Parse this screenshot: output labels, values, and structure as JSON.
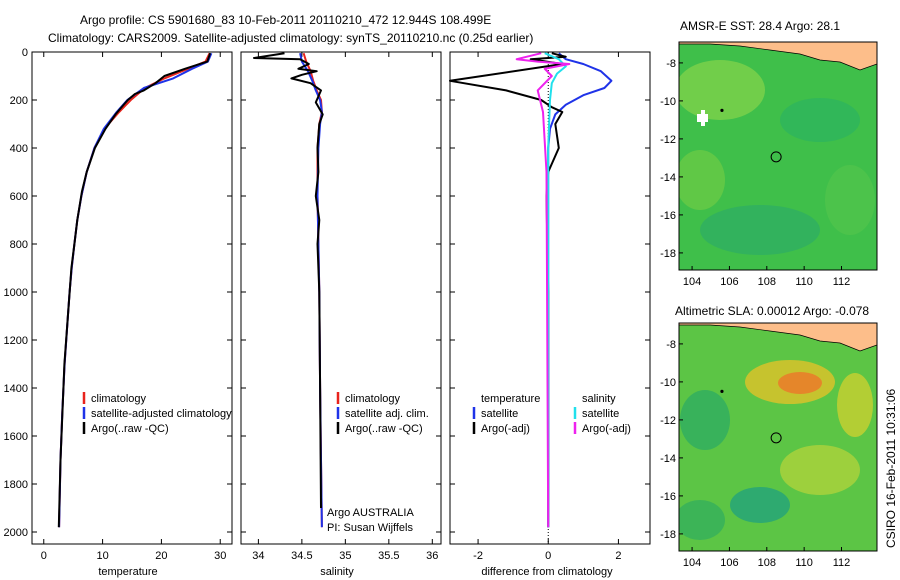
{
  "figure": {
    "title_line1": "Argo profile: CS 5901680_83 10-Feb-2011 20110210_472 12.944S 108.499E",
    "title_line2": "Climatology: CARS2009. Satellite-adjusted climatology: synTS_20110210.nc (0.25d earlier)",
    "side_label": "CSIRO 16-Feb-2011 10:31:06",
    "colors": {
      "climatology": "#e8231c",
      "satellite": "#1f33e8",
      "argo": "#000000",
      "diff_satellite": "#20e0ec",
      "diff_argo": "#ee22ee",
      "land": "#fdbe8a",
      "sea_green": "#3fbf4a",
      "float_marker": "#000000"
    }
  },
  "panels": {
    "temperature": {
      "xlabel": "temperature",
      "legend": [
        "climatology",
        "satellite-adjusted climatology",
        "Argo(..raw -QC)"
      ]
    },
    "salinity": {
      "xlabel": "salinity",
      "legend": [
        "climatology",
        "satellite adj. clim.",
        "Argo(..raw -QC)"
      ],
      "note1": "Argo AUSTRALIA",
      "note2": "PI: Susan Wijffels"
    },
    "difference": {
      "xlabel": "difference from climatology",
      "legend_head_left": "temperature",
      "legend_head_right": "salinity",
      "legend_left": [
        "satellite",
        "Argo(-adj)"
      ],
      "legend_right": [
        "satellite",
        "Argo(-adj)"
      ]
    },
    "sst_map": {
      "title": "AMSR-E SST: 28.4 Argo: 28.1"
    },
    "sla_map": {
      "title": "Altimetric SLA: 0.00012 Argo: -0.078"
    }
  },
  "chart_data": [
    {
      "type": "line",
      "name": "temperature",
      "xlabel": "temperature",
      "ylabel": "",
      "xlim": [
        -2,
        32
      ],
      "ylim": [
        2050,
        0
      ],
      "xticks": [
        0,
        10,
        20,
        30
      ],
      "yticks": [
        0,
        200,
        400,
        600,
        800,
        1000,
        1200,
        1400,
        1600,
        1800,
        2000
      ],
      "grid": false,
      "series": [
        {
          "name": "climatology",
          "color": "#e8231c",
          "x": [
            28.2,
            27.5,
            24.5,
            20.5,
            17.2,
            14.8,
            12.8,
            10.3,
            8.6,
            7.3,
            6.4,
            5.7,
            5.2,
            4.75,
            4.4,
            4.1,
            3.55,
            3.15,
            2.85,
            2.6
          ],
          "y": [
            5,
            40,
            70,
            110,
            150,
            200,
            250,
            320,
            400,
            500,
            600,
            700,
            800,
            900,
            1000,
            1100,
            1300,
            1500,
            1700,
            1980
          ]
        },
        {
          "name": "satellite-adjusted climatology",
          "color": "#1f33e8",
          "x": [
            28.5,
            27.9,
            25.2,
            22.0,
            17.0,
            14.2,
            12.4,
            10.2,
            8.6,
            7.3,
            6.4,
            5.7,
            5.2,
            4.75,
            4.4,
            4.1,
            3.55,
            3.15,
            2.85,
            2.6
          ],
          "y": [
            5,
            40,
            70,
            110,
            150,
            200,
            250,
            320,
            400,
            500,
            600,
            700,
            800,
            900,
            1000,
            1100,
            1300,
            1500,
            1700,
            1980
          ]
        },
        {
          "name": "Argo(..raw -QC)",
          "color": "#000000",
          "x": [
            28.3,
            27.8,
            24.0,
            20.5,
            19.0,
            17.0,
            15.5,
            14.3,
            13.4,
            12.2,
            10.5,
            8.7,
            7.3,
            6.5,
            5.7,
            5.2,
            4.7,
            4.1,
            3.5,
            2.85,
            2.55
          ],
          "y": [
            5,
            40,
            70,
            100,
            130,
            160,
            175,
            200,
            225,
            260,
            320,
            400,
            500,
            580,
            700,
            800,
            900,
            1100,
            1300,
            1700,
            1980
          ]
        }
      ]
    },
    {
      "type": "line",
      "name": "salinity",
      "xlabel": "salinity",
      "ylabel": "",
      "xlim": [
        33.8,
        36.1
      ],
      "ylim": [
        2050,
        0
      ],
      "xticks": [
        34,
        34.5,
        35,
        35.5,
        36
      ],
      "grid": false,
      "series": [
        {
          "name": "climatology",
          "color": "#e8231c",
          "x": [
            34.52,
            34.55,
            34.6,
            34.63,
            34.67,
            34.72,
            34.73,
            34.7,
            34.68,
            34.68,
            34.69,
            34.7,
            34.71,
            34.72,
            34.73
          ],
          "y": [
            5,
            40,
            80,
            120,
            160,
            200,
            250,
            300,
            400,
            600,
            800,
            1000,
            1400,
            1700,
            1980
          ]
        },
        {
          "name": "satellite adj. clim.",
          "color": "#1f33e8",
          "x": [
            34.48,
            34.5,
            34.57,
            34.62,
            34.66,
            34.71,
            34.73,
            34.71,
            34.69,
            34.68,
            34.69,
            34.7,
            34.71,
            34.72,
            34.73
          ],
          "y": [
            5,
            40,
            80,
            120,
            160,
            200,
            250,
            300,
            400,
            600,
            800,
            1000,
            1400,
            1700,
            1980
          ]
        },
        {
          "name": "Argo(..raw -QC)",
          "color": "#000000",
          "x": [
            34.3,
            33.95,
            34.48,
            34.58,
            34.46,
            34.67,
            34.5,
            34.38,
            34.6,
            34.72,
            34.66,
            34.74,
            34.7,
            34.68,
            34.69,
            34.66,
            34.7,
            34.68,
            34.7,
            34.71,
            34.72
          ],
          "y": [
            5,
            25,
            30,
            50,
            70,
            80,
            95,
            110,
            130,
            160,
            210,
            260,
            300,
            400,
            500,
            600,
            700,
            800,
            1000,
            1400,
            1900
          ]
        }
      ]
    },
    {
      "type": "line",
      "name": "difference from climatology",
      "xlabel": "difference from climatology",
      "ylabel": "",
      "xlim": [
        -2.8,
        2.9
      ],
      "ylim": [
        2050,
        0
      ],
      "xticks": [
        -2,
        0,
        2
      ],
      "grid": false,
      "series": [
        {
          "name": "temperature satellite",
          "color": "#1f33e8",
          "x": [
            0.3,
            0.5,
            1.0,
            1.5,
            1.8,
            1.6,
            1.0,
            0.5,
            0.2,
            0.05,
            0.0,
            0.0
          ],
          "y": [
            5,
            30,
            50,
            80,
            120,
            150,
            180,
            220,
            260,
            320,
            400,
            1980
          ]
        },
        {
          "name": "temperature Argo(-adj)",
          "color": "#000000",
          "x": [
            0.1,
            0.5,
            -0.5,
            0.4,
            -2.8,
            -1.2,
            -0.2,
            0.1,
            0.4,
            0.2,
            0.3,
            0.0,
            -0.05,
            0.0,
            0.0
          ],
          "y": [
            5,
            20,
            30,
            50,
            120,
            160,
            200,
            230,
            250,
            300,
            400,
            500,
            600,
            1000,
            1980
          ]
        },
        {
          "name": "salinity satellite",
          "color": "#20e0ec",
          "x": [
            -0.1,
            0.3,
            0.5,
            0.25,
            0.1,
            0.05,
            0.0,
            0.0
          ],
          "y": [
            5,
            30,
            60,
            90,
            130,
            200,
            400,
            1980
          ]
        },
        {
          "name": "salinity Argo(-adj)",
          "color": "#ee22ee",
          "x": [
            -0.2,
            -0.9,
            -0.3,
            0.6,
            -0.1,
            0.1,
            -0.3,
            -0.15,
            -0.05,
            0.0
          ],
          "y": [
            5,
            30,
            40,
            50,
            70,
            100,
            160,
            250,
            500,
            1980
          ]
        }
      ]
    },
    {
      "type": "heatmap",
      "name": "AMSR-E SST",
      "title": "AMSR-E SST: 28.4 Argo: 28.1",
      "xlim": [
        103.3,
        113.9
      ],
      "ylim": [
        -18.9,
        -6.9
      ],
      "xticks": [
        104,
        106,
        108,
        110,
        112
      ],
      "yticks": [
        -8,
        -10,
        -12,
        -14,
        -16,
        -18
      ],
      "float_position": [
        108.5,
        -12.944
      ],
      "marker_position": [
        105.6,
        -10.5
      ]
    },
    {
      "type": "heatmap",
      "name": "Altimetric SLA",
      "title": "Altimetric SLA: 0.00012 Argo: -0.078",
      "xlim": [
        103.3,
        113.9
      ],
      "ylim": [
        -18.9,
        -6.9
      ],
      "xticks": [
        104,
        106,
        108,
        110,
        112
      ],
      "yticks": [
        -8,
        -10,
        -12,
        -14,
        -16,
        -18
      ],
      "float_position": [
        108.5,
        -12.944
      ],
      "marker_position": [
        105.6,
        -10.5
      ]
    }
  ]
}
